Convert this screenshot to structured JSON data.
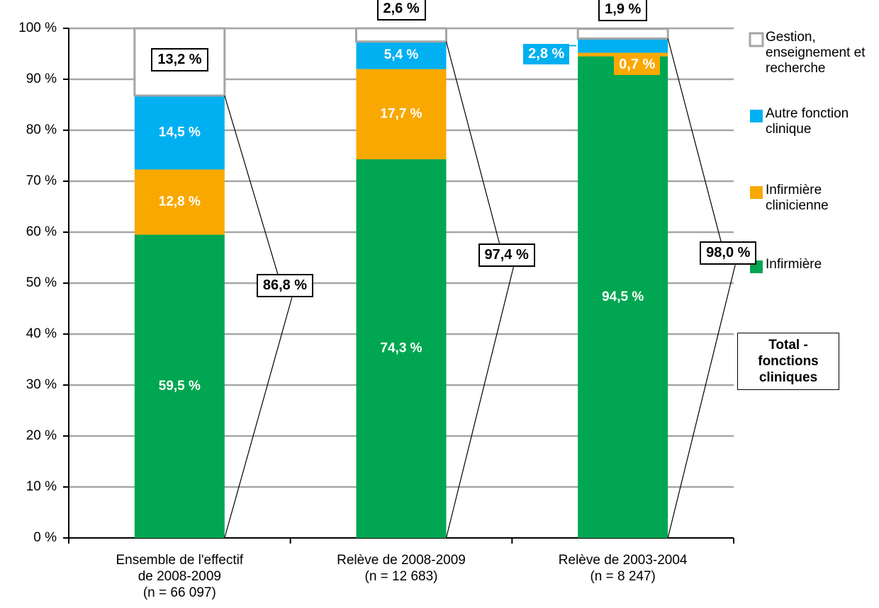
{
  "chart_data": {
    "type": "stacked_bar",
    "categories": [
      "Ensemble de l'effectif\nde 2008-2009\n(n = 66 097)",
      "Relève de 2008-2009\n(n = 12 683)",
      "Relève de 2003-2004\n(n = 8 247)"
    ],
    "series": [
      {
        "name": "Infirmière",
        "color": "#00a651",
        "values": [
          59.5,
          74.3,
          94.5
        ],
        "value_labels": [
          "59,5  %",
          "74,3  %",
          "94,5  %"
        ]
      },
      {
        "name": "Infirmière clinicienne",
        "color": "#f9a800",
        "values": [
          12.8,
          17.7,
          0.7
        ],
        "value_labels": [
          "12,8  %",
          "17,7  %",
          "0,7  %"
        ]
      },
      {
        "name": "Autre fonction clinique",
        "color": "#00b0f0",
        "values": [
          14.5,
          5.4,
          2.8
        ],
        "value_labels": [
          "14,5  %",
          "5,4  %",
          "2,8  %"
        ]
      },
      {
        "name": "Gestion, enseignement et recherche",
        "color": "#ffffff",
        "values": [
          13.2,
          2.6,
          1.9
        ],
        "value_labels": [
          "13,2  %",
          "2,6  %",
          "1,9  %"
        ]
      }
    ],
    "totals": {
      "name": "Total - fonctions cliniques",
      "values": [
        86.8,
        97.4,
        98.0
      ],
      "value_labels": [
        "86,8 %",
        "97,4 %",
        "98,0 %"
      ]
    },
    "ylim": [
      0,
      100
    ],
    "yticks": [
      {
        "value": 0,
        "label": "0  %"
      },
      {
        "value": 10,
        "label": "10  %"
      },
      {
        "value": 20,
        "label": "20  %"
      },
      {
        "value": 30,
        "label": "30  %"
      },
      {
        "value": 40,
        "label": "40  %"
      },
      {
        "value": 50,
        "label": "50  %"
      },
      {
        "value": 60,
        "label": "60  %"
      },
      {
        "value": 70,
        "label": "70  %"
      },
      {
        "value": 80,
        "label": "80  %"
      },
      {
        "value": 90,
        "label": "90  %"
      },
      {
        "value": 100,
        "label": "100  %"
      }
    ],
    "grid": true
  }
}
